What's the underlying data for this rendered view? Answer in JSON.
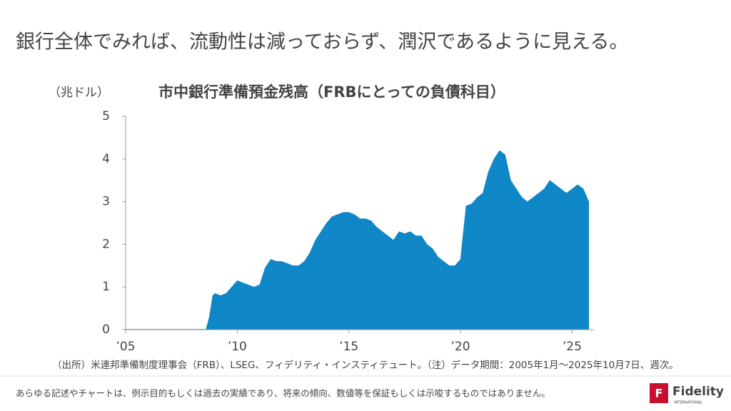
{
  "header": {
    "title": "銀行全体でみれば、流動性は減っておらず、潤沢であるように見える。"
  },
  "chart_data": {
    "type": "area",
    "title": "市中銀行準備預金残高（FRBにとっての負債科目）",
    "y_label": "（兆ドル）",
    "x": [
      2005.0,
      2006.0,
      2007.0,
      2008.0,
      2008.6,
      2008.75,
      2008.9,
      2009.0,
      2009.25,
      2009.5,
      2009.75,
      2010.0,
      2010.25,
      2010.5,
      2010.75,
      2011.0,
      2011.25,
      2011.5,
      2011.75,
      2012.0,
      2012.25,
      2012.5,
      2012.75,
      2013.0,
      2013.25,
      2013.5,
      2013.75,
      2014.0,
      2014.25,
      2014.5,
      2014.75,
      2015.0,
      2015.25,
      2015.5,
      2015.75,
      2016.0,
      2016.25,
      2016.5,
      2016.75,
      2017.0,
      2017.25,
      2017.5,
      2017.75,
      2018.0,
      2018.25,
      2018.5,
      2018.75,
      2019.0,
      2019.25,
      2019.5,
      2019.75,
      2020.0,
      2020.25,
      2020.5,
      2020.75,
      2021.0,
      2021.25,
      2021.5,
      2021.75,
      2022.0,
      2022.25,
      2022.5,
      2022.75,
      2023.0,
      2023.25,
      2023.5,
      2023.75,
      2024.0,
      2024.25,
      2024.5,
      2024.75,
      2025.0,
      2025.25,
      2025.5,
      2025.75
    ],
    "values": [
      0.01,
      0.01,
      0.01,
      0.01,
      0.01,
      0.3,
      0.8,
      0.85,
      0.8,
      0.85,
      1.0,
      1.15,
      1.1,
      1.05,
      1.0,
      1.05,
      1.45,
      1.65,
      1.6,
      1.6,
      1.55,
      1.5,
      1.5,
      1.6,
      1.8,
      2.1,
      2.3,
      2.5,
      2.65,
      2.7,
      2.75,
      2.75,
      2.7,
      2.6,
      2.6,
      2.55,
      2.4,
      2.3,
      2.2,
      2.1,
      2.3,
      2.25,
      2.3,
      2.2,
      2.2,
      2.0,
      1.9,
      1.7,
      1.6,
      1.5,
      1.5,
      1.65,
      2.9,
      2.95,
      3.1,
      3.2,
      3.7,
      4.0,
      4.2,
      4.1,
      3.5,
      3.3,
      3.1,
      3.0,
      3.1,
      3.2,
      3.3,
      3.5,
      3.4,
      3.3,
      3.2,
      3.3,
      3.4,
      3.3,
      3.0
    ],
    "color": "#0f87c7",
    "xlim": [
      2005,
      2025.85
    ],
    "xticks": [
      {
        "value": 2005,
        "label": "’05"
      },
      {
        "value": 2010,
        "label": "’10"
      },
      {
        "value": 2015,
        "label": "’15"
      },
      {
        "value": 2020,
        "label": "’20"
      },
      {
        "value": 2025,
        "label": "’25"
      }
    ],
    "ylim": [
      0,
      5
    ],
    "yticks": [
      0,
      1,
      2,
      3,
      4,
      5
    ]
  },
  "source": "（出所）米連邦準備制度理事会（FRB）、LSEG、フィデリティ・インスティテュート。（注）データ期間：2005年1月～2025年10月7日、週次。",
  "footer": {
    "disclaimer": "あらゆる記述やチャートは、例示目的もしくは過去の実績であり、将来の傾向、数値等を保証もしくは示唆するものではありません。",
    "logo": "Fidelity",
    "logo_sub": "INTERNATIONAL"
  }
}
